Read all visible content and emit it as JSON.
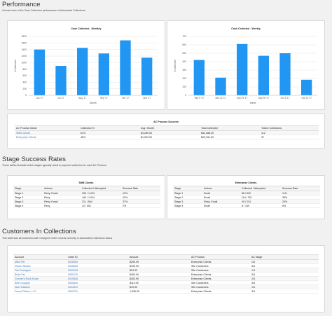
{
  "performance": {
    "title": "Performance",
    "subtitle": "A broad view of the Cash Collection performance of Automated Collections"
  },
  "monthly_chart": {
    "title": "Cash Collected - Monthly",
    "ylabel": "$ Collected",
    "xlabel": "Month",
    "y_ticks": [
      "0",
      "200",
      "400",
      "600",
      "800",
      "1000",
      "1200",
      "1400",
      "1600",
      "1800"
    ]
  },
  "weekly_chart": {
    "title": "Cash Collected - Weekly",
    "ylabel": "$ Collected",
    "xlabel": "Week",
    "y_ticks": [
      "0",
      "100",
      "200",
      "300",
      "400",
      "500",
      "600",
      "700"
    ]
  },
  "chart_data": [
    {
      "type": "bar",
      "title": "Cash Collected - Monthly",
      "xlabel": "Month",
      "ylabel": "$ Collected",
      "categories": [
        "Jun '17",
        "Jul '17",
        "Aug '17",
        "Sep '17",
        "Oct '17",
        "Nov '17"
      ],
      "values": [
        1400,
        900,
        1450,
        1280,
        1680,
        1150
      ],
      "ylim": [
        0,
        1800
      ],
      "color": "#2196f3"
    },
    {
      "type": "bar",
      "title": "Cash Collected - Weekly",
      "xlabel": "Week",
      "ylabel": "$ Collected",
      "categories": [
        "Sep 5 '17",
        "Sep 12 '17",
        "Sep 19 '17",
        "Sep 26 '17",
        "Oct 3 '17",
        "Oct 10 '17"
      ],
      "values": [
        420,
        210,
        610,
        470,
        500,
        185
      ],
      "ylim": [
        0,
        700
      ],
      "color": "#2196f3"
    }
  ],
  "ac_success": {
    "title": "AC Process Success",
    "columns": [
      "AC Process Name",
      "Collection %",
      "Avg / Month",
      "Total Collected",
      "Total # Collections"
    ],
    "rows": [
      [
        "SMB Clients",
        "61%",
        "$3,280.00",
        "$42,288.00",
        "112"
      ],
      [
        "Enterprise Clients",
        "45%",
        "$1,092.00",
        "$20,331.00",
        "37"
      ]
    ]
  },
  "stage": {
    "title": "Stage Success Rates",
    "subtitle": "These tables illustrate which stages typically result in payment collection for each AC Process",
    "smb": {
      "title": "SMB Clients",
      "columns": [
        "Stage",
        "Actions",
        "Collected / Attempted",
        "Success Rate"
      ],
      "rows": [
        [
          "Stage 1",
          "Retry, Email",
          "239 / 1,243",
          "19%"
        ],
        [
          "Stage 2",
          "Retry",
          "440 / 1,004",
          "43%"
        ],
        [
          "Stage 3",
          "Retry, Email",
          "211 / 564",
          "37%"
        ],
        [
          "Stage 4",
          "Retry",
          "12 / 502",
          "2%"
        ]
      ]
    },
    "enterprise": {
      "title": "Enterprise Clients",
      "columns": [
        "Stage",
        "Actions",
        "Collected / Attempted",
        "Success Rate"
      ],
      "rows": [
        [
          "Stage 1",
          "Email",
          "58 / 532",
          "11%"
        ],
        [
          "Stage 2",
          "Email",
          "114 / 301",
          "38%"
        ],
        [
          "Stage 3",
          "Retry, Email",
          "45 / 224",
          "20%"
        ],
        [
          "Stage 4",
          "Email",
          "8 / 139",
          "6%"
        ]
      ]
    }
  },
  "customers": {
    "title": "Customers In Collections",
    "subtitle": "This table lists all customers with Chargent Order records currently in Automated Collections status",
    "columns": [
      "Account",
      "Order ID",
      "Amount",
      "AC Process",
      "AC Stage"
    ],
    "rows": [
      [
        "Mark Pitt",
        "0026083",
        "$299.99",
        "Enterprise Clients",
        "1/4"
      ],
      [
        "Deonn Stokes",
        "0026084",
        "$199.99",
        "Site Customers",
        "3/4"
      ],
      [
        "Tim Torrington",
        "0029126",
        "$24.99",
        "Site Customers",
        "1/4"
      ],
      [
        "Brain Per",
        "0095123",
        "$450.00",
        "Enterprise Clients",
        "3/4"
      ],
      [
        "Gunner's Rock Score",
        "0025848",
        "$300.99",
        "Enterprise Clients",
        "2/4"
      ],
      [
        "Beth Doughty",
        "0050654",
        "$110.00",
        "Site Customers",
        "3/4"
      ],
      [
        "Stan Williams",
        "0044512",
        "$19.99",
        "Site Customers",
        "1/4"
      ],
      [
        "Fence Fritters, LLC",
        "0062231",
        "1,999.00",
        "Enterprise Clients",
        "3/4"
      ]
    ]
  }
}
